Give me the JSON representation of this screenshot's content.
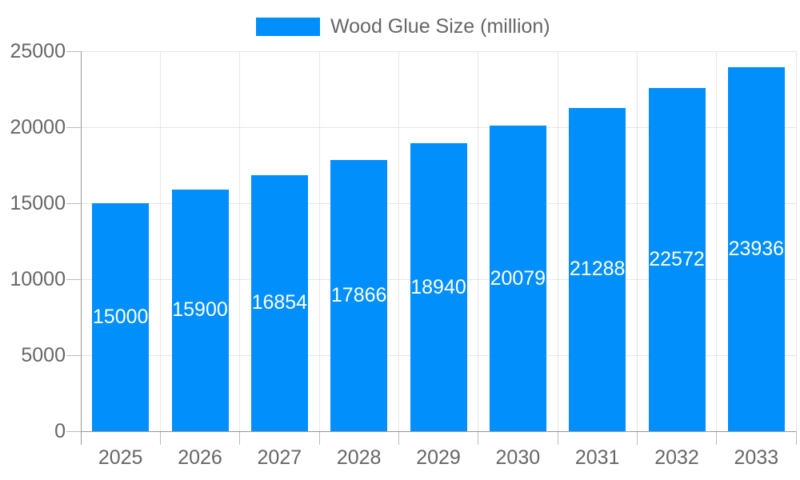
{
  "chart_data": {
    "type": "bar",
    "title": "",
    "legend": {
      "label": "Wood Glue Size (million)",
      "position": "top"
    },
    "categories": [
      "2025",
      "2026",
      "2027",
      "2028",
      "2029",
      "2030",
      "2031",
      "2032",
      "2033"
    ],
    "series": [
      {
        "name": "Wood Glue Size (million)",
        "values": [
          15000,
          15900,
          16854,
          17866,
          18940,
          20079,
          21288,
          22572,
          23936
        ]
      }
    ],
    "xlabel": "",
    "ylabel": "",
    "ylim": [
      0,
      25000
    ],
    "yticks": [
      0,
      5000,
      10000,
      15000,
      20000,
      25000
    ],
    "grid": true,
    "bar_label_position": "inside-center",
    "colors": {
      "bar": "#008FFB",
      "bar_label": "#ffffff",
      "axis_text": "#666666",
      "grid_line": "#e6e6e6",
      "axis_line": "#999999",
      "tick_mark": "#bdbdbd",
      "background": "#ffffff"
    }
  }
}
